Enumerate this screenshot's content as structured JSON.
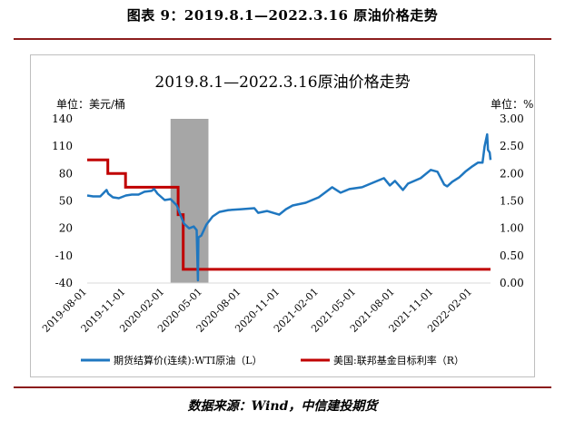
{
  "figure": {
    "title": "图表 9：2019.8.1—2022.3.16 原油价格走势",
    "source": "数据来源：Wind，中信建投期货"
  },
  "colors": {
    "wti": "#1f77c0",
    "rate": "#c00000",
    "shade": "#a6a6a6"
  },
  "chart_data": {
    "type": "line",
    "title": "2019.8.1—2022.3.16原油价格走势",
    "left_axis": {
      "unit_label": "单位：美元/桶",
      "range": [
        -40,
        140
      ],
      "ticks": [
        -40,
        -10,
        20,
        50,
        80,
        110,
        140
      ],
      "tick_labels": [
        "-40",
        "-10",
        "20",
        "50",
        "80",
        "110",
        "140"
      ]
    },
    "right_axis": {
      "unit_label": "单位：%",
      "range": [
        0,
        3
      ],
      "ticks": [
        0,
        0.5,
        1,
        1.5,
        2,
        2.5,
        3
      ],
      "tick_labels": [
        "0.00",
        "0.50",
        "1.00",
        "1.50",
        "2.00",
        "2.50",
        "3.00"
      ]
    },
    "x_axis": {
      "range": [
        "2019-08-01",
        "2022-03-16"
      ],
      "tick_labels": [
        "2019-08-01",
        "2019-11-01",
        "2020-02-01",
        "2020-05-01",
        "2020-08-01",
        "2020-11-01",
        "2021-02-01",
        "2021-05-01",
        "2021-08-01",
        "2021-11-01",
        "2022-02-01"
      ]
    },
    "shaded_period": [
      "2020-02-15",
      "2020-05-15"
    ],
    "grid": false,
    "legend_position": "bottom",
    "series": [
      {
        "name": "期货结算价(连续):WTI原油（L）",
        "axis": "left",
        "style": "line",
        "points": [
          [
            "2019-08-01",
            56
          ],
          [
            "2019-08-15",
            55
          ],
          [
            "2019-09-01",
            55
          ],
          [
            "2019-09-16",
            62
          ],
          [
            "2019-09-20",
            58
          ],
          [
            "2019-10-01",
            54
          ],
          [
            "2019-10-15",
            53
          ],
          [
            "2019-11-01",
            56
          ],
          [
            "2019-11-15",
            57
          ],
          [
            "2019-12-01",
            57
          ],
          [
            "2019-12-15",
            60
          ],
          [
            "2020-01-01",
            61
          ],
          [
            "2020-01-07",
            63
          ],
          [
            "2020-01-15",
            58
          ],
          [
            "2020-02-01",
            51
          ],
          [
            "2020-02-15",
            52
          ],
          [
            "2020-03-01",
            45
          ],
          [
            "2020-03-10",
            34
          ],
          [
            "2020-03-18",
            25
          ],
          [
            "2020-03-30",
            20
          ],
          [
            "2020-04-10",
            22
          ],
          [
            "2020-04-17",
            18
          ],
          [
            "2020-04-20",
            -37
          ],
          [
            "2020-04-21",
            10
          ],
          [
            "2020-04-28",
            12
          ],
          [
            "2020-05-10",
            24
          ],
          [
            "2020-05-25",
            33
          ],
          [
            "2020-06-10",
            38
          ],
          [
            "2020-07-01",
            40
          ],
          [
            "2020-08-01",
            41
          ],
          [
            "2020-09-01",
            42
          ],
          [
            "2020-09-10",
            37
          ],
          [
            "2020-10-01",
            39
          ],
          [
            "2020-10-30",
            35
          ],
          [
            "2020-11-15",
            41
          ],
          [
            "2020-12-01",
            45
          ],
          [
            "2021-01-01",
            48
          ],
          [
            "2021-02-01",
            54
          ],
          [
            "2021-03-05",
            65
          ],
          [
            "2021-03-25",
            59
          ],
          [
            "2021-04-15",
            63
          ],
          [
            "2021-05-15",
            65
          ],
          [
            "2021-06-15",
            71
          ],
          [
            "2021-07-06",
            75
          ],
          [
            "2021-07-20",
            67
          ],
          [
            "2021-08-01",
            72
          ],
          [
            "2021-08-20",
            62
          ],
          [
            "2021-09-01",
            69
          ],
          [
            "2021-10-01",
            75
          ],
          [
            "2021-10-25",
            84
          ],
          [
            "2021-11-10",
            82
          ],
          [
            "2021-11-26",
            68
          ],
          [
            "2021-12-03",
            66
          ],
          [
            "2021-12-15",
            71
          ],
          [
            "2022-01-01",
            76
          ],
          [
            "2022-01-15",
            82
          ],
          [
            "2022-02-01",
            88
          ],
          [
            "2022-02-14",
            92
          ],
          [
            "2022-02-25",
            92
          ],
          [
            "2022-03-02",
            110
          ],
          [
            "2022-03-08",
            123
          ],
          [
            "2022-03-10",
            106
          ],
          [
            "2022-03-14",
            103
          ],
          [
            "2022-03-16",
            95
          ]
        ]
      },
      {
        "name": "美国:联邦基金目标利率（R）",
        "axis": "right",
        "style": "step",
        "points": [
          [
            "2019-08-01",
            2.25
          ],
          [
            "2019-09-19",
            2.0
          ],
          [
            "2019-10-31",
            1.75
          ],
          [
            "2020-03-04",
            1.25
          ],
          [
            "2020-03-16",
            0.25
          ],
          [
            "2022-03-16",
            0.25
          ]
        ]
      }
    ]
  }
}
